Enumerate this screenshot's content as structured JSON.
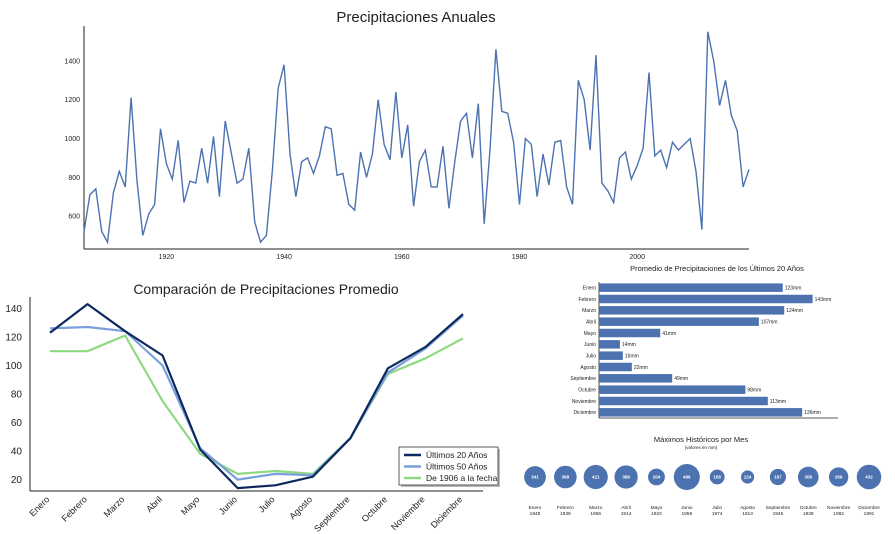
{
  "colors": {
    "annual": "#4c72b0",
    "last20": "#0d2a5e",
    "last50": "#7b9fdb",
    "since1906": "#8fd982",
    "bar": "#4c72b0",
    "bubble": "#4c72b0"
  },
  "chart_data": [
    {
      "type": "line",
      "title": "Precipitaciones Anuales",
      "xlabel": "",
      "ylabel": "",
      "grid": false,
      "xlim": [
        1906,
        2019
      ],
      "ylim": [
        430,
        1580
      ],
      "x_ticks": [
        1920,
        1940,
        1960,
        1980,
        2000
      ],
      "y_ticks": [
        600,
        800,
        1000,
        1200,
        1400
      ],
      "series": [
        {
          "start_year": 1906,
          "values": [
            520,
            710,
            740,
            520,
            465,
            720,
            830,
            750,
            1210,
            780,
            500,
            610,
            660,
            1050,
            870,
            790,
            990,
            670,
            780,
            770,
            950,
            770,
            1010,
            700,
            1090,
            930,
            770,
            790,
            950,
            570,
            465,
            500,
            830,
            1260,
            1380,
            920,
            700,
            880,
            900,
            820,
            910,
            1060,
            1050,
            810,
            820,
            660,
            630,
            930,
            800,
            920,
            1200,
            970,
            890,
            1240,
            900,
            1070,
            650,
            880,
            940,
            750,
            750,
            960,
            640,
            880,
            1090,
            1130,
            900,
            1180,
            560,
            950,
            1460,
            1140,
            1130,
            980,
            660,
            1000,
            970,
            700,
            920,
            760,
            980,
            990,
            750,
            660,
            1300,
            1200,
            940,
            1430,
            770,
            730,
            670,
            900,
            930,
            790,
            860,
            950,
            1340,
            910,
            940,
            850,
            980,
            940,
            970,
            1000,
            830,
            530,
            1550,
            1400,
            1170,
            1300,
            1120,
            1040,
            750,
            840
          ]
        }
      ]
    },
    {
      "type": "line",
      "title": "Comparación de Precipitaciones Promedio",
      "xlabel": "",
      "ylabel": "",
      "grid": false,
      "ylim": [
        12,
        148
      ],
      "y_ticks": [
        20,
        40,
        60,
        80,
        100,
        120,
        140
      ],
      "legend_position": "bottom-right",
      "categories": [
        "Enero",
        "Febrero",
        "Marzo",
        "Abril",
        "Mayo",
        "Junio",
        "Julio",
        "Agosto",
        "Septiembre",
        "Octubre",
        "Noviembre",
        "Diciembre"
      ],
      "series": [
        {
          "name": "Últimos 20 Años",
          "values": [
            123,
            143,
            124,
            107,
            41,
            14,
            16,
            22,
            49,
            98,
            113,
            136
          ]
        },
        {
          "name": "Últimos 50 Años",
          "values": [
            126,
            127,
            124,
            100,
            42,
            20,
            24,
            23,
            49,
            95,
            112,
            135
          ]
        },
        {
          "name": "De 1906 a la fecha",
          "values": [
            110,
            110,
            121,
            75,
            38,
            24,
            26,
            24,
            49,
            94,
            105,
            119
          ]
        }
      ]
    },
    {
      "type": "bar",
      "orientation": "horizontal",
      "title": "Promedio de Precipitaciones de los Últimos 20 Años",
      "xlim": [
        0,
        160
      ],
      "categories": [
        "Enero",
        "Febrero",
        "Marzo",
        "Abril",
        "Mayo",
        "Junio",
        "Julio",
        "Agosto",
        "Septiembre",
        "Octubre",
        "Noviembre",
        "Diciembre"
      ],
      "values": [
        123,
        143,
        124,
        107,
        41,
        14,
        16,
        22,
        49,
        98,
        113,
        136
      ],
      "labels": [
        "123mm",
        "143mm",
        "124mm",
        "107mm",
        "41mm",
        "14mm",
        "16mm",
        "22mm",
        "49mm",
        "98mm",
        "113mm",
        "136mm"
      ]
    },
    {
      "type": "scatter",
      "title": "Máximos Históricos por Mes",
      "subtitle": "(valores en mm)",
      "points": [
        {
          "month": "Enero",
          "year": "1948",
          "value": 341
        },
        {
          "month": "Febrero",
          "year": "1939",
          "value": 368
        },
        {
          "month": "Marzo",
          "year": "1966",
          "value": 421
        },
        {
          "month": "Abril",
          "year": "1914",
          "value": 389
        },
        {
          "month": "Mayo",
          "year": "1922",
          "value": 204
        },
        {
          "month": "Junio",
          "year": "1959",
          "value": 486
        },
        {
          "month": "Julio",
          "year": "1974",
          "value": 158
        },
        {
          "month": "Agosto",
          "year": "1913",
          "value": 124
        },
        {
          "month": "Septiembre",
          "year": "1945",
          "value": 187
        },
        {
          "month": "Octubre",
          "year": "1939",
          "value": 308
        },
        {
          "month": "Noviembre",
          "year": "1992",
          "value": 269
        },
        {
          "month": "Diciembre",
          "year": "1991",
          "value": 432
        }
      ]
    }
  ]
}
